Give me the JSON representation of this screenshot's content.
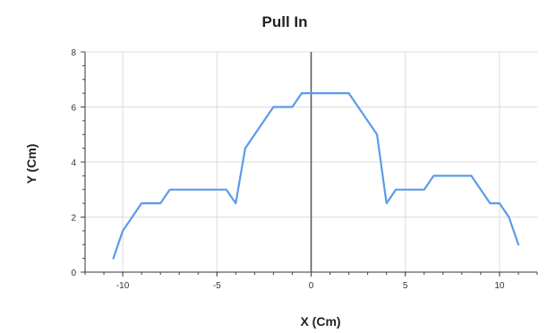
{
  "chart_data": {
    "type": "line",
    "title": "Pull In",
    "xlabel": "X (Cm)",
    "ylabel": "Y (Cm)",
    "xlim": [
      -12,
      12
    ],
    "ylim": [
      0,
      8
    ],
    "x_ticks": [
      -10,
      -5,
      0,
      5,
      10
    ],
    "y_ticks": [
      0,
      2,
      4,
      6,
      8
    ],
    "x_tick_labels": [
      "-10",
      "-5",
      "0",
      "5",
      "10"
    ],
    "y_tick_labels": [
      "0",
      "2",
      "4",
      "6",
      "8"
    ],
    "grid": true,
    "line_color": "#5b9bea",
    "series": [
      {
        "x": [
          -10.5,
          -10.0,
          -9.0,
          -8.0,
          -7.5,
          -4.5,
          -4.0,
          -3.5,
          -2.0,
          -1.0,
          -0.5,
          2.0,
          3.5,
          4.0,
          4.5,
          6.0,
          6.5,
          8.5,
          9.5,
          10.0,
          10.5,
          11.0
        ],
        "y": [
          0.5,
          1.5,
          2.5,
          2.5,
          3.0,
          3.0,
          2.5,
          4.5,
          6.0,
          6.0,
          6.5,
          6.5,
          5.0,
          2.5,
          3.0,
          3.0,
          3.5,
          3.5,
          2.5,
          2.5,
          2.0,
          1.0
        ]
      }
    ]
  }
}
